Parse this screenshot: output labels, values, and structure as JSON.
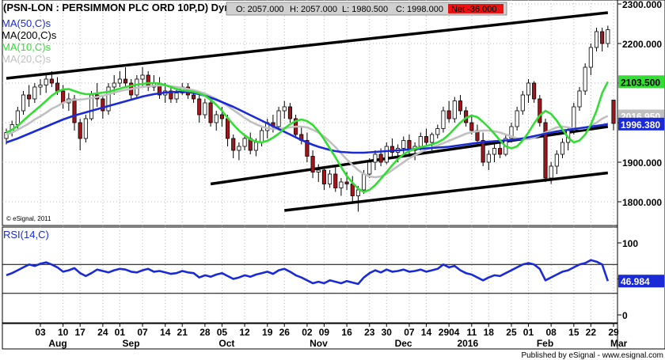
{
  "header": {
    "symbol_text": "(PSN-LON : PERSIMMON PLC ORD 10P,D) Dyn",
    "ohlc": {
      "open_label": "O: 2057.000",
      "high_label": "H: 2057.000",
      "low_label": "L: 1980.500",
      "close_label": "C: 1998.000",
      "net_label": "Net -36.000"
    }
  },
  "legend": [
    {
      "label": "MA(50,C)s",
      "color": "#1a2ad6"
    },
    {
      "label": "MA(200,C)s",
      "color": "#000000"
    },
    {
      "label": "MA(10,C)s",
      "color": "#33dd33"
    },
    {
      "label": "MA(20,C)s",
      "color": "#c0c0c0"
    }
  ],
  "copyright": "© eSignal, 2011",
  "publisher": "Published by eSignal - www.esignal.com",
  "colors": {
    "candle_up": "#ffffff",
    "candle_down": "#a0161c",
    "ma10": "#33dd33",
    "ma20": "#c0c0c0",
    "ma50": "#1a2ad6",
    "trendline": "#000000",
    "rsi": "#1a2ad6",
    "net_badge": "#ee1111"
  },
  "chart_data": [
    {
      "type": "candlestick",
      "title": "(PSN-LON : PERSIMMON PLC ORD 10P,D) Dyn",
      "y_ticks": [
        1800,
        1900,
        2000,
        2100,
        2200,
        2300
      ],
      "y_tick_labels": [
        "1800.000",
        "1900.000",
        "2000.000",
        "2100.000",
        "2200.000",
        "2300.000"
      ],
      "ylim": [
        1740,
        2310
      ],
      "x_tick_labels": [
        "03",
        "10",
        "17",
        "24",
        "01",
        "07",
        "14",
        "21",
        "28",
        "05",
        "12",
        "19",
        "26",
        "02",
        "09",
        "16",
        "23",
        "30",
        "07",
        "14",
        "2904",
        "11",
        "18",
        "25",
        "01",
        "08",
        "15",
        "22",
        "29"
      ],
      "month_labels": [
        "Aug",
        "Sep",
        "Oct",
        "Nov",
        "Dec",
        "2016",
        "Feb",
        "Mar"
      ],
      "price_labels": [
        {
          "name": "MA(10,C)s",
          "value": 2103.5,
          "label": "2103.500"
        },
        {
          "name": "MA(20,C)s",
          "value": 2016.95,
          "label": "2016.950"
        },
        {
          "name": "MA(50,C)s",
          "value": 1996.38,
          "label": "1996.380"
        }
      ],
      "candles": [
        [
          1960,
          1985,
          1945,
          1975
        ],
        [
          1975,
          2005,
          1965,
          1995
        ],
        [
          1995,
          2040,
          1985,
          2030
        ],
        [
          2030,
          2080,
          2020,
          2070
        ],
        [
          2070,
          2095,
          2040,
          2060
        ],
        [
          2060,
          2100,
          2050,
          2090
        ],
        [
          2090,
          2110,
          2070,
          2095
        ],
        [
          2095,
          2120,
          2075,
          2110
        ],
        [
          2110,
          2130,
          2090,
          2100
        ],
        [
          2100,
          2115,
          2070,
          2080
        ],
        [
          2080,
          2095,
          2035,
          2050
        ],
        [
          2050,
          2075,
          2030,
          2060
        ],
        [
          2060,
          2070,
          1980,
          2000
        ],
        [
          2000,
          2010,
          1930,
          1960
        ],
        [
          1960,
          2020,
          1950,
          2010
        ],
        [
          2010,
          2080,
          2005,
          2070
        ],
        [
          2070,
          2100,
          2040,
          2060
        ],
        [
          2060,
          2070,
          2010,
          2030
        ],
        [
          2030,
          2100,
          2020,
          2090
        ],
        [
          2090,
          2120,
          2070,
          2100
        ],
        [
          2100,
          2130,
          2090,
          2110
        ],
        [
          2110,
          2140,
          2090,
          2100
        ],
        [
          2100,
          2110,
          2060,
          2070
        ],
        [
          2070,
          2120,
          2060,
          2110
        ],
        [
          2110,
          2140,
          2090,
          2120
        ],
        [
          2120,
          2130,
          2080,
          2090
        ],
        [
          2090,
          2120,
          2080,
          2100
        ],
        [
          2100,
          2115,
          2060,
          2070
        ],
        [
          2070,
          2100,
          2050,
          2080
        ],
        [
          2080,
          2090,
          2050,
          2060
        ],
        [
          2060,
          2085,
          2050,
          2075
        ],
        [
          2075,
          2100,
          2070,
          2090
        ],
        [
          2090,
          2100,
          2060,
          2070
        ],
        [
          2070,
          2080,
          2050,
          2060
        ],
        [
          2060,
          2070,
          2000,
          2020
        ],
        [
          2020,
          2060,
          2010,
          2050
        ],
        [
          2050,
          2060,
          1990,
          2000
        ],
        [
          2000,
          2030,
          1980,
          2020
        ],
        [
          2020,
          2040,
          1990,
          2010
        ],
        [
          2010,
          2020,
          1940,
          1960
        ],
        [
          1960,
          1970,
          1910,
          1930
        ],
        [
          1930,
          1950,
          1905,
          1940
        ],
        [
          1940,
          1970,
          1930,
          1960
        ],
        [
          1960,
          1975,
          1920,
          1930
        ],
        [
          1930,
          1960,
          1915,
          1950
        ],
        [
          1950,
          1990,
          1940,
          1980
        ],
        [
          1980,
          2010,
          1960,
          2000
        ],
        [
          2000,
          2020,
          1975,
          1990
        ],
        [
          1990,
          2040,
          1980,
          2030
        ],
        [
          2030,
          2055,
          2010,
          2040
        ],
        [
          2040,
          2050,
          2000,
          2010
        ],
        [
          2010,
          2020,
          1960,
          1970
        ],
        [
          1970,
          1990,
          1945,
          1955
        ],
        [
          1955,
          1975,
          1900,
          1915
        ],
        [
          1915,
          1930,
          1860,
          1875
        ],
        [
          1875,
          1895,
          1850,
          1880
        ],
        [
          1880,
          1890,
          1830,
          1845
        ],
        [
          1845,
          1880,
          1835,
          1870
        ],
        [
          1870,
          1890,
          1825,
          1835
        ],
        [
          1835,
          1860,
          1815,
          1850
        ],
        [
          1850,
          1875,
          1830,
          1845
        ],
        [
          1845,
          1865,
          1800,
          1815
        ],
        [
          1815,
          1840,
          1775,
          1830
        ],
        [
          1830,
          1880,
          1820,
          1870
        ],
        [
          1870,
          1910,
          1860,
          1900
        ],
        [
          1900,
          1930,
          1880,
          1920
        ],
        [
          1920,
          1935,
          1890,
          1900
        ],
        [
          1900,
          1950,
          1895,
          1940
        ],
        [
          1940,
          1960,
          1910,
          1925
        ],
        [
          1925,
          1945,
          1900,
          1935
        ],
        [
          1935,
          1965,
          1920,
          1955
        ],
        [
          1955,
          1970,
          1920,
          1930
        ],
        [
          1930,
          1950,
          1905,
          1940
        ],
        [
          1940,
          1975,
          1930,
          1965
        ],
        [
          1965,
          1985,
          1940,
          1950
        ],
        [
          1950,
          1975,
          1930,
          1970
        ],
        [
          1970,
          1995,
          1960,
          1985
        ],
        [
          1985,
          2040,
          1975,
          2030
        ],
        [
          2030,
          2055,
          2000,
          2010
        ],
        [
          2010,
          2065,
          2000,
          2055
        ],
        [
          2055,
          2070,
          2020,
          2030
        ],
        [
          2030,
          2040,
          1990,
          2000
        ],
        [
          2000,
          2020,
          1970,
          1980
        ],
        [
          1980,
          1995,
          1945,
          1955
        ],
        [
          1955,
          1975,
          1890,
          1900
        ],
        [
          1900,
          1930,
          1880,
          1920
        ],
        [
          1920,
          1945,
          1900,
          1935
        ],
        [
          1935,
          1955,
          1910,
          1920
        ],
        [
          1920,
          1970,
          1915,
          1960
        ],
        [
          1960,
          2000,
          1950,
          1990
        ],
        [
          1990,
          2040,
          1980,
          2030
        ],
        [
          2030,
          2080,
          2020,
          2070
        ],
        [
          2070,
          2110,
          2050,
          2100
        ],
        [
          2100,
          2105,
          2050,
          2060
        ],
        [
          2060,
          2070,
          1990,
          2000
        ],
        [
          2000,
          2010,
          1850,
          1860
        ],
        [
          1860,
          1900,
          1845,
          1890
        ],
        [
          1890,
          1930,
          1870,
          1920
        ],
        [
          1920,
          1960,
          1910,
          1950
        ],
        [
          1950,
          1990,
          1930,
          1980
        ],
        [
          1980,
          2050,
          1970,
          2040
        ],
        [
          2040,
          2090,
          2030,
          2080
        ],
        [
          2080,
          2150,
          2070,
          2140
        ],
        [
          2140,
          2200,
          2120,
          2190
        ],
        [
          2190,
          2240,
          2180,
          2230
        ],
        [
          2230,
          2240,
          2180,
          2200
        ],
        [
          2200,
          2245,
          2190,
          2235
        ],
        [
          2057,
          2057,
          1980.5,
          1998
        ]
      ],
      "ma10": [
        1975,
        1982,
        1992,
        2005,
        2018,
        2030,
        2042,
        2055,
        2068,
        2078,
        2084,
        2085,
        2080,
        2075,
        2072,
        2072,
        2074,
        2076,
        2078,
        2082,
        2086,
        2090,
        2093,
        2096,
        2098,
        2100,
        2100,
        2099,
        2095,
        2090,
        2085,
        2082,
        2080,
        2078,
        2074,
        2068,
        2058,
        2045,
        2030,
        2012,
        1995,
        1980,
        1968,
        1958,
        1952,
        1950,
        1954,
        1962,
        1972,
        1985,
        1996,
        2004,
        2008,
        2004,
        1994,
        1978,
        1958,
        1935,
        1912,
        1888,
        1865,
        1848,
        1833,
        1825,
        1830,
        1842,
        1858,
        1875,
        1892,
        1908,
        1920,
        1928,
        1934,
        1938,
        1941,
        1945,
        1950,
        1958,
        1970,
        1985,
        2000,
        2012,
        2018,
        2014,
        2002,
        1988,
        1972,
        1955,
        1940,
        1935,
        1940,
        1955,
        1975,
        1998,
        2018,
        2030,
        2022,
        2005,
        1983,
        1962,
        1950,
        1955,
        1970,
        1995,
        2030,
        2075,
        2103.5
      ],
      "ma20": [
        1970,
        1975,
        1982,
        1990,
        1998,
        2008,
        2016,
        2025,
        2035,
        2042,
        2050,
        2055,
        2058,
        2058,
        2060,
        2062,
        2065,
        2068,
        2072,
        2076,
        2080,
        2083,
        2085,
        2088,
        2090,
        2092,
        2093,
        2094,
        2094,
        2092,
        2090,
        2088,
        2085,
        2082,
        2078,
        2073,
        2067,
        2060,
        2052,
        2042,
        2032,
        2022,
        2012,
        2003,
        1996,
        1990,
        1986,
        1984,
        1984,
        1986,
        1988,
        1990,
        1990,
        1988,
        1982,
        1975,
        1965,
        1952,
        1938,
        1922,
        1907,
        1893,
        1880,
        1870,
        1864,
        1862,
        1864,
        1870,
        1880,
        1890,
        1900,
        1910,
        1918,
        1925,
        1932,
        1937,
        1942,
        1948,
        1954,
        1960,
        1966,
        1972,
        1976,
        1978,
        1980,
        1980,
        1978,
        1975,
        1970,
        1965,
        1960,
        1958,
        1958,
        1962,
        1968,
        1975,
        1982,
        1988,
        1990,
        1988,
        1985,
        1984,
        1986,
        1992,
        2000,
        2010,
        2016.95
      ],
      "ma50": [
        1950,
        1955,
        1960,
        1966,
        1972,
        1978,
        1984,
        1990,
        1996,
        2002,
        2008,
        2013,
        2018,
        2022,
        2026,
        2030,
        2034,
        2038,
        2042,
        2046,
        2050,
        2054,
        2058,
        2062,
        2066,
        2069,
        2072,
        2074,
        2076,
        2077,
        2078,
        2078,
        2077,
        2075,
        2072,
        2068,
        2063,
        2058,
        2052,
        2046,
        2040,
        2033,
        2026,
        2019,
        2012,
        2005,
        1998,
        1991,
        1984,
        1977,
        1970,
        1963,
        1956,
        1950,
        1944,
        1939,
        1935,
        1931,
        1928,
        1926,
        1925,
        1924,
        1924,
        1924,
        1925,
        1926,
        1927,
        1928,
        1929,
        1930,
        1931,
        1932,
        1933,
        1934,
        1935,
        1936,
        1937,
        1938,
        1939,
        1941,
        1943,
        1945,
        1947,
        1949,
        1951,
        1952,
        1953,
        1954,
        1955,
        1956,
        1958,
        1960,
        1963,
        1966,
        1969,
        1972,
        1975,
        1978,
        1980,
        1982,
        1984,
        1986,
        1988,
        1990,
        1992,
        1994,
        1996.38
      ],
      "trendlines": [
        {
          "from": [
            0,
            2112
          ],
          "to": [
            106,
            2278
          ]
        },
        {
          "from": [
            36,
            1845
          ],
          "to": [
            106,
            1990
          ]
        },
        {
          "from": [
            49,
            1778
          ],
          "to": [
            106,
            1873
          ]
        }
      ]
    },
    {
      "type": "line",
      "title": "RSI(14,C)",
      "series": [
        {
          "name": "RSI(14,C)",
          "last_label": "46.984"
        }
      ],
      "y_ticks": [
        0,
        50,
        100
      ],
      "ylim": [
        0,
        100
      ],
      "reference_lines": [
        30,
        70
      ],
      "values": [
        55,
        58,
        62,
        66,
        70,
        68,
        71,
        73,
        70,
        66,
        60,
        62,
        65,
        58,
        54,
        58,
        63,
        61,
        59,
        62,
        64,
        63,
        60,
        59,
        62,
        64,
        60,
        61,
        59,
        57,
        58,
        61,
        59,
        58,
        52,
        55,
        53,
        56,
        58,
        54,
        50,
        52,
        55,
        53,
        56,
        58,
        60,
        57,
        62,
        64,
        60,
        55,
        52,
        48,
        44,
        46,
        44,
        48,
        46,
        44,
        47,
        45,
        43,
        52,
        58,
        62,
        59,
        63,
        60,
        61,
        63,
        60,
        61,
        63,
        60,
        62,
        64,
        70,
        66,
        68,
        62,
        58,
        56,
        52,
        48,
        52,
        55,
        54,
        58,
        62,
        66,
        70,
        72,
        70,
        64,
        48,
        52,
        56,
        60,
        62,
        66,
        70,
        72,
        76,
        74,
        70,
        46.984
      ]
    }
  ]
}
